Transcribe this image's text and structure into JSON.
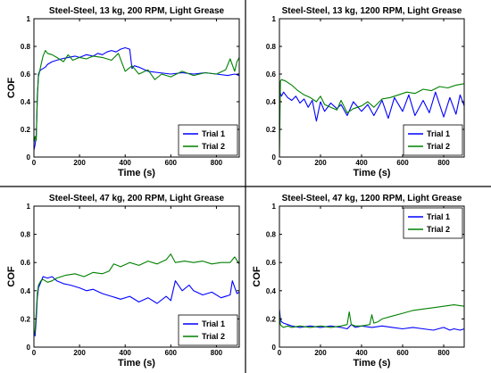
{
  "chart_data": [
    {
      "type": "line",
      "title": "Steel-Steel, 13 kg, 200 RPM, Light Grease",
      "xlabel": "Time (s)",
      "ylabel": "COF",
      "xlim": [
        0,
        900
      ],
      "ylim": [
        0,
        1
      ],
      "xticks": [
        "0",
        "200",
        "400",
        "600",
        "800"
      ],
      "yticks": [
        "0",
        "0.2",
        "0.4",
        "0.6",
        "0.8",
        "1"
      ],
      "legend_position": "bottom-right",
      "series": [
        {
          "name": "Trial 1",
          "color": "#0000ff",
          "x": [
            0,
            5,
            10,
            15,
            20,
            25,
            30,
            40,
            50,
            60,
            80,
            100,
            120,
            150,
            180,
            200,
            230,
            260,
            280,
            300,
            320,
            340,
            360,
            380,
            400,
            420,
            430,
            440,
            460,
            500,
            550,
            600,
            650,
            700,
            750,
            800,
            850,
            880,
            900
          ],
          "y": [
            0.05,
            0.09,
            0.15,
            0.42,
            0.6,
            0.62,
            0.63,
            0.64,
            0.65,
            0.67,
            0.69,
            0.7,
            0.71,
            0.72,
            0.73,
            0.72,
            0.74,
            0.73,
            0.75,
            0.74,
            0.76,
            0.77,
            0.76,
            0.78,
            0.79,
            0.78,
            0.64,
            0.66,
            0.65,
            0.62,
            0.61,
            0.6,
            0.61,
            0.6,
            0.61,
            0.6,
            0.59,
            0.6,
            0.59
          ]
        },
        {
          "name": "Trial 2",
          "color": "#008000",
          "x": [
            0,
            5,
            10,
            15,
            20,
            25,
            30,
            40,
            50,
            60,
            80,
            100,
            130,
            150,
            170,
            200,
            230,
            260,
            300,
            340,
            370,
            400,
            430,
            460,
            500,
            530,
            560,
            600,
            650,
            700,
            750,
            800,
            840,
            860,
            880,
            890,
            900
          ],
          "y": [
            0.1,
            0.15,
            0.12,
            0.45,
            0.58,
            0.62,
            0.66,
            0.73,
            0.77,
            0.75,
            0.74,
            0.72,
            0.69,
            0.74,
            0.7,
            0.72,
            0.71,
            0.73,
            0.72,
            0.7,
            0.75,
            0.62,
            0.66,
            0.6,
            0.63,
            0.56,
            0.6,
            0.58,
            0.62,
            0.59,
            0.61,
            0.6,
            0.63,
            0.71,
            0.62,
            0.69,
            0.72
          ]
        }
      ]
    },
    {
      "type": "line",
      "title": "Steel-Steel, 13 kg, 1200 RPM, Light Grease",
      "xlabel": "Time (s)",
      "ylabel": "",
      "xlim": [
        0,
        900
      ],
      "ylim": [
        0,
        1
      ],
      "xticks": [
        "0",
        "200",
        "400",
        "600",
        "800"
      ],
      "yticks": [
        "0",
        "0.2",
        "0.4",
        "0.6",
        "0.8",
        "1"
      ],
      "legend_position": "bottom-right",
      "series": [
        {
          "name": "Trial 1",
          "color": "#0000ff",
          "x": [
            0,
            10,
            20,
            40,
            60,
            80,
            100,
            120,
            140,
            160,
            180,
            200,
            220,
            250,
            280,
            300,
            330,
            360,
            400,
            430,
            460,
            500,
            530,
            560,
            600,
            630,
            660,
            700,
            730,
            760,
            800,
            830,
            860,
            880,
            900
          ],
          "y": [
            0.48,
            0.44,
            0.47,
            0.43,
            0.41,
            0.44,
            0.39,
            0.42,
            0.36,
            0.41,
            0.26,
            0.4,
            0.33,
            0.39,
            0.35,
            0.38,
            0.3,
            0.4,
            0.33,
            0.38,
            0.3,
            0.41,
            0.28,
            0.43,
            0.33,
            0.45,
            0.3,
            0.41,
            0.32,
            0.47,
            0.29,
            0.43,
            0.31,
            0.45,
            0.37
          ]
        },
        {
          "name": "Trial 2",
          "color": "#008000",
          "x": [
            0,
            5,
            10,
            30,
            60,
            90,
            120,
            150,
            180,
            200,
            220,
            250,
            280,
            300,
            330,
            360,
            400,
            430,
            460,
            500,
            540,
            580,
            620,
            660,
            700,
            740,
            780,
            820,
            860,
            900
          ],
          "y": [
            0.0,
            0.55,
            0.56,
            0.55,
            0.52,
            0.48,
            0.45,
            0.43,
            0.4,
            0.44,
            0.38,
            0.36,
            0.34,
            0.41,
            0.32,
            0.35,
            0.37,
            0.4,
            0.36,
            0.42,
            0.43,
            0.45,
            0.47,
            0.46,
            0.49,
            0.48,
            0.51,
            0.5,
            0.52,
            0.53
          ]
        }
      ]
    },
    {
      "type": "line",
      "title": "Steel-Steel, 47 kg, 200 RPM, Light Grease",
      "xlabel": "Time (s)",
      "ylabel": "COF",
      "xlim": [
        0,
        900
      ],
      "ylim": [
        0,
        1
      ],
      "xticks": [
        "0",
        "200",
        "400",
        "600",
        "800"
      ],
      "yticks": [
        "0",
        "0.2",
        "0.4",
        "0.6",
        "0.8",
        "1"
      ],
      "legend_position": "bottom-right",
      "series": [
        {
          "name": "Trial 1",
          "color": "#0000ff",
          "x": [
            0,
            5,
            10,
            15,
            20,
            30,
            40,
            60,
            80,
            100,
            130,
            160,
            200,
            230,
            260,
            300,
            340,
            380,
            420,
            460,
            500,
            540,
            580,
            600,
            620,
            650,
            680,
            700,
            740,
            780,
            820,
            860,
            870,
            890,
            900
          ],
          "y": [
            0.1,
            0.08,
            0.2,
            0.35,
            0.42,
            0.46,
            0.5,
            0.49,
            0.5,
            0.47,
            0.45,
            0.44,
            0.42,
            0.4,
            0.41,
            0.38,
            0.36,
            0.34,
            0.36,
            0.32,
            0.35,
            0.31,
            0.36,
            0.33,
            0.47,
            0.4,
            0.44,
            0.4,
            0.37,
            0.39,
            0.35,
            0.37,
            0.47,
            0.38,
            0.39
          ]
        },
        {
          "name": "Trial 2",
          "color": "#008000",
          "x": [
            0,
            5,
            10,
            15,
            20,
            30,
            40,
            60,
            80,
            100,
            140,
            180,
            220,
            260,
            300,
            330,
            350,
            380,
            420,
            460,
            500,
            540,
            580,
            600,
            620,
            660,
            700,
            740,
            780,
            820,
            860,
            880,
            900
          ],
          "y": [
            0.08,
            0.12,
            0.25,
            0.38,
            0.44,
            0.47,
            0.48,
            0.46,
            0.47,
            0.49,
            0.51,
            0.52,
            0.5,
            0.53,
            0.52,
            0.54,
            0.59,
            0.57,
            0.6,
            0.58,
            0.61,
            0.59,
            0.62,
            0.66,
            0.6,
            0.61,
            0.6,
            0.61,
            0.59,
            0.6,
            0.6,
            0.64,
            0.59
          ]
        }
      ]
    },
    {
      "type": "line",
      "title": "Steel-Steel, 47 kg, 1200 RPM, Light Grease",
      "xlabel": "Time (s)",
      "ylabel": "COF",
      "xlim": [
        0,
        900
      ],
      "ylim": [
        0,
        1
      ],
      "xticks": [
        "0",
        "200",
        "400",
        "600",
        "800"
      ],
      "yticks": [
        "0",
        "0.2",
        "0.4",
        "0.6",
        "0.8",
        "1"
      ],
      "legend_position": "top-right",
      "series": [
        {
          "name": "Trial 1",
          "color": "#0000ff",
          "x": [
            0,
            5,
            10,
            20,
            40,
            60,
            100,
            150,
            200,
            250,
            300,
            330,
            350,
            370,
            400,
            450,
            500,
            550,
            600,
            650,
            700,
            750,
            800,
            830,
            850,
            880,
            900
          ],
          "y": [
            0.27,
            0.2,
            0.18,
            0.17,
            0.16,
            0.15,
            0.14,
            0.15,
            0.14,
            0.15,
            0.14,
            0.13,
            0.16,
            0.14,
            0.15,
            0.14,
            0.15,
            0.14,
            0.13,
            0.14,
            0.13,
            0.12,
            0.14,
            0.12,
            0.13,
            0.12,
            0.13
          ]
        },
        {
          "name": "Trial 2",
          "color": "#008000",
          "x": [
            0,
            5,
            10,
            20,
            40,
            60,
            100,
            150,
            200,
            250,
            300,
            330,
            340,
            350,
            370,
            400,
            440,
            450,
            460,
            480,
            500,
            550,
            600,
            650,
            700,
            750,
            800,
            850,
            900
          ],
          "y": [
            0.25,
            0.16,
            0.15,
            0.14,
            0.15,
            0.14,
            0.15,
            0.14,
            0.15,
            0.14,
            0.15,
            0.16,
            0.25,
            0.16,
            0.15,
            0.15,
            0.16,
            0.23,
            0.17,
            0.18,
            0.2,
            0.22,
            0.24,
            0.26,
            0.27,
            0.28,
            0.29,
            0.3,
            0.29
          ]
        }
      ]
    }
  ]
}
